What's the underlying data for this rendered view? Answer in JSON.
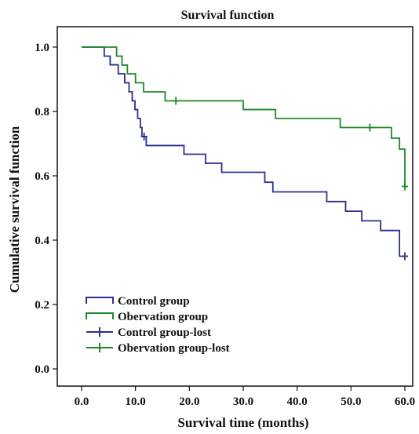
{
  "chart_data": {
    "type": "line",
    "title": "Survival function",
    "xlabel": "Survival time (months)",
    "ylabel": "Cumulative survival function",
    "xlim": [
      0,
      60
    ],
    "ylim": [
      0,
      1
    ],
    "x_ticks": [
      "0.0",
      "10.0",
      "20.0",
      "30.0",
      "40.0",
      "50.0",
      "60.0"
    ],
    "y_ticks": [
      "0.0",
      "0.2",
      "0.4",
      "0.6",
      "0.8",
      "1.0"
    ],
    "grid": false,
    "legend_position": "bottom-left",
    "step": true,
    "series": [
      {
        "name": "Control group",
        "color": "#2b2f8f",
        "x": [
          0,
          4.2,
          5.3,
          6.8,
          8.0,
          8.8,
          9.4,
          9.9,
          10.4,
          10.9,
          11.2,
          11.6,
          12.0,
          19.0,
          23.0,
          26.0,
          34.0,
          35.5,
          45.5,
          49.0,
          52.0,
          55.5,
          59.0,
          60.0
        ],
        "y": [
          1.0,
          0.972,
          0.945,
          0.917,
          0.889,
          0.861,
          0.833,
          0.806,
          0.778,
          0.75,
          0.722,
          0.722,
          0.694,
          0.667,
          0.639,
          0.611,
          0.58,
          0.55,
          0.52,
          0.49,
          0.46,
          0.43,
          0.35,
          0.35
        ]
      },
      {
        "name": "Obervation group",
        "color": "#1f8a2a",
        "x": [
          0,
          6.5,
          7.5,
          8.5,
          10.0,
          11.5,
          15.5,
          17.5,
          30.0,
          36.0,
          48.0,
          53.5,
          57.5,
          59.0,
          60.0
        ],
        "y": [
          1.0,
          0.972,
          0.944,
          0.917,
          0.889,
          0.861,
          0.833,
          0.833,
          0.806,
          0.778,
          0.75,
          0.75,
          0.717,
          0.683,
          0.567
        ]
      }
    ],
    "censored": [
      {
        "name": "Control group-lost",
        "color": "#2b2f8f",
        "points": [
          [
            11.6,
            0.722
          ],
          [
            60.0,
            0.35
          ]
        ]
      },
      {
        "name": "Obervation group-lost",
        "color": "#1f8a2a",
        "points": [
          [
            17.5,
            0.833
          ],
          [
            53.5,
            0.75
          ],
          [
            60.0,
            0.567
          ]
        ]
      }
    ]
  }
}
